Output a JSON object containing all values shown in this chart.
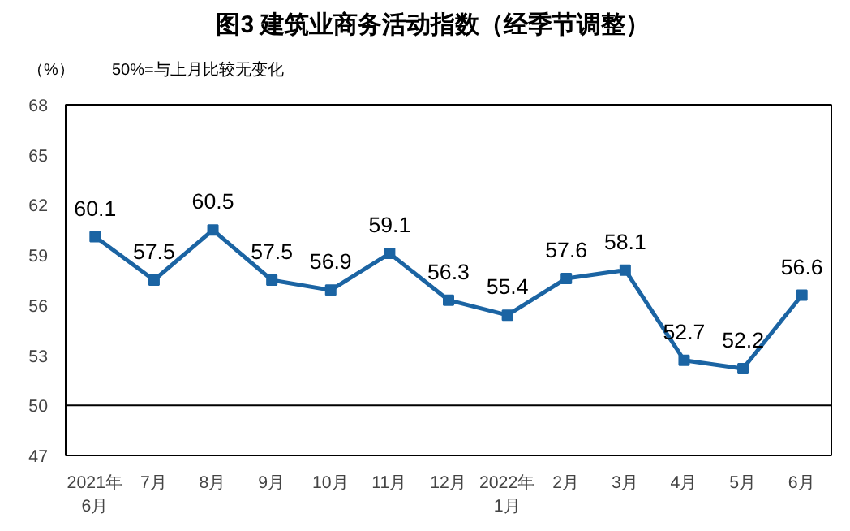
{
  "chart_data": {
    "type": "line",
    "title": "图3  建筑业商务活动指数（经季节调整）",
    "ylabel": "（%）",
    "annotations": [
      "50%=与上月比较无变化"
    ],
    "categories": [
      "2021年\n6月",
      "7月",
      "8月",
      "9月",
      "10月",
      "11月",
      "12月",
      "2022年\n1月",
      "2月",
      "3月",
      "4月",
      "5月",
      "6月"
    ],
    "series": [
      {
        "color": "#1b64a3",
        "values": [
          60.1,
          57.5,
          60.5,
          57.5,
          56.9,
          59.1,
          56.3,
          55.4,
          57.6,
          58.1,
          52.7,
          52.2,
          56.6
        ]
      }
    ],
    "ylim": [
      47,
      68
    ],
    "yticks": [
      47,
      50,
      53,
      56,
      59,
      62,
      65,
      68
    ],
    "ref_lines": [
      {
        "axis": "y",
        "value": 50,
        "color": "#000000"
      }
    ],
    "data_labels": true,
    "marker": "square",
    "line_style": "solid"
  }
}
